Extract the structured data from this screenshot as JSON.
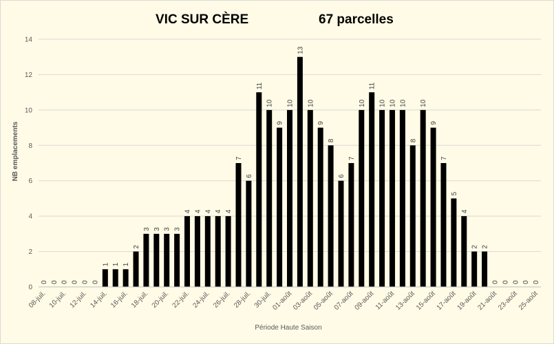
{
  "chart_data": {
    "type": "bar",
    "title": "VIC SUR CÈRE",
    "subtitle": "67 parcelles",
    "xlabel": "Période Haute Saison",
    "ylabel": "NB emplacements",
    "ylim": [
      0,
      14
    ],
    "y_ticks": [
      0,
      2,
      4,
      6,
      8,
      10,
      12,
      14
    ],
    "grid": true,
    "categories": [
      "08-juil.",
      "09-juil.",
      "10-juil.",
      "11-juil.",
      "12-juil.",
      "13-juil.",
      "14-juil.",
      "15-juil.",
      "16-juil.",
      "17-juil.",
      "18-juil.",
      "19-juil.",
      "20-juil.",
      "21-juil.",
      "22-juil.",
      "23-juil.",
      "24-juil.",
      "25-juil.",
      "26-juil.",
      "27-juil.",
      "28-juil.",
      "29-juil.",
      "30-juil.",
      "31-juil.",
      "01-août",
      "02-août",
      "03-août",
      "04-août",
      "05-août",
      "06-août",
      "07-août",
      "08-août",
      "09-août",
      "10-août",
      "11-août",
      "12-août",
      "13-août",
      "14-août",
      "15-août",
      "16-août",
      "17-août",
      "18-août",
      "19-août",
      "20-août",
      "21-août",
      "22-août",
      "23-août",
      "24-août",
      "25-août"
    ],
    "visible_tick_labels": [
      "08-juil.",
      "10-juil.",
      "12-juil.",
      "14-juil.",
      "16-juil.",
      "18-juil.",
      "20-juil.",
      "22-juil.",
      "24-juil.",
      "26-juil.",
      "28-juil.",
      "30-juil.",
      "01-août",
      "03-août",
      "05-août",
      "07-août",
      "09-août",
      "11-août",
      "13-août",
      "15-août",
      "17-août",
      "19-août",
      "21-août",
      "23-août",
      "25-août"
    ],
    "values": [
      0,
      0,
      0,
      0,
      0,
      0,
      1,
      1,
      1,
      2,
      3,
      3,
      3,
      3,
      4,
      4,
      4,
      4,
      4,
      7,
      6,
      11,
      10,
      9,
      10,
      13,
      10,
      9,
      8,
      6,
      7,
      10,
      11,
      10,
      10,
      10,
      8,
      10,
      9,
      7,
      5,
      4,
      2,
      2,
      0,
      0,
      0,
      0,
      0
    ],
    "colors": {
      "bar": "#000000",
      "grid": "#d9d9d9",
      "background": "#fffbe6"
    }
  }
}
